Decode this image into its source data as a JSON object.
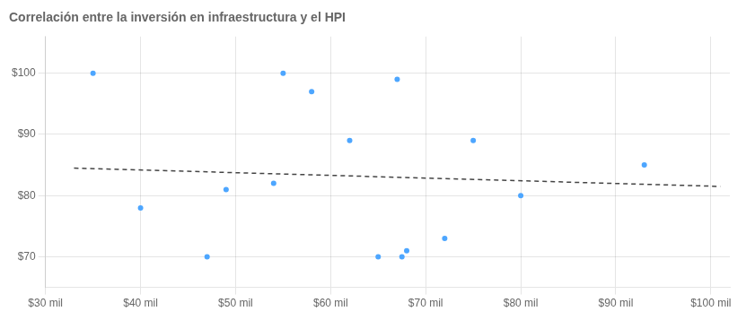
{
  "chart_data": {
    "type": "scatter",
    "title": "Correlación entre la inversión en infraestructura y el HPI",
    "series": [
      {
        "type": "scatter",
        "color": "#4da6ff",
        "x": [
          35000,
          40000,
          47000,
          49000,
          54000,
          55000,
          58000,
          62000,
          65000,
          67000,
          67500,
          68000,
          72000,
          75000,
          80000,
          93000
        ],
        "values": [
          100,
          78,
          70,
          81,
          82,
          100,
          97,
          89,
          70,
          99,
          70,
          71,
          73,
          89,
          80,
          85
        ]
      },
      {
        "type": "line",
        "color": "#444444",
        "line_style": "dashed",
        "x": [
          33000,
          101000
        ],
        "values": [
          84.5,
          81.5
        ]
      }
    ],
    "xlim": [
      30000,
      102000
    ],
    "ylim": [
      65,
      106
    ],
    "xticks": [
      {
        "value": 30000,
        "label": "$30 mil"
      },
      {
        "value": 40000,
        "label": "$40 mil"
      },
      {
        "value": 50000,
        "label": "$50 mil"
      },
      {
        "value": 60000,
        "label": "$60 mil"
      },
      {
        "value": 70000,
        "label": "$70 mil"
      },
      {
        "value": 80000,
        "label": "$80 mil"
      },
      {
        "value": 90000,
        "label": "$90 mil"
      },
      {
        "value": 100000,
        "label": "$100 mil"
      }
    ],
    "yticks": [
      {
        "value": 70,
        "label": "$70"
      },
      {
        "value": 80,
        "label": "$80"
      },
      {
        "value": 90,
        "label": "$90"
      },
      {
        "value": 100,
        "label": "$100"
      }
    ],
    "grid": true
  }
}
